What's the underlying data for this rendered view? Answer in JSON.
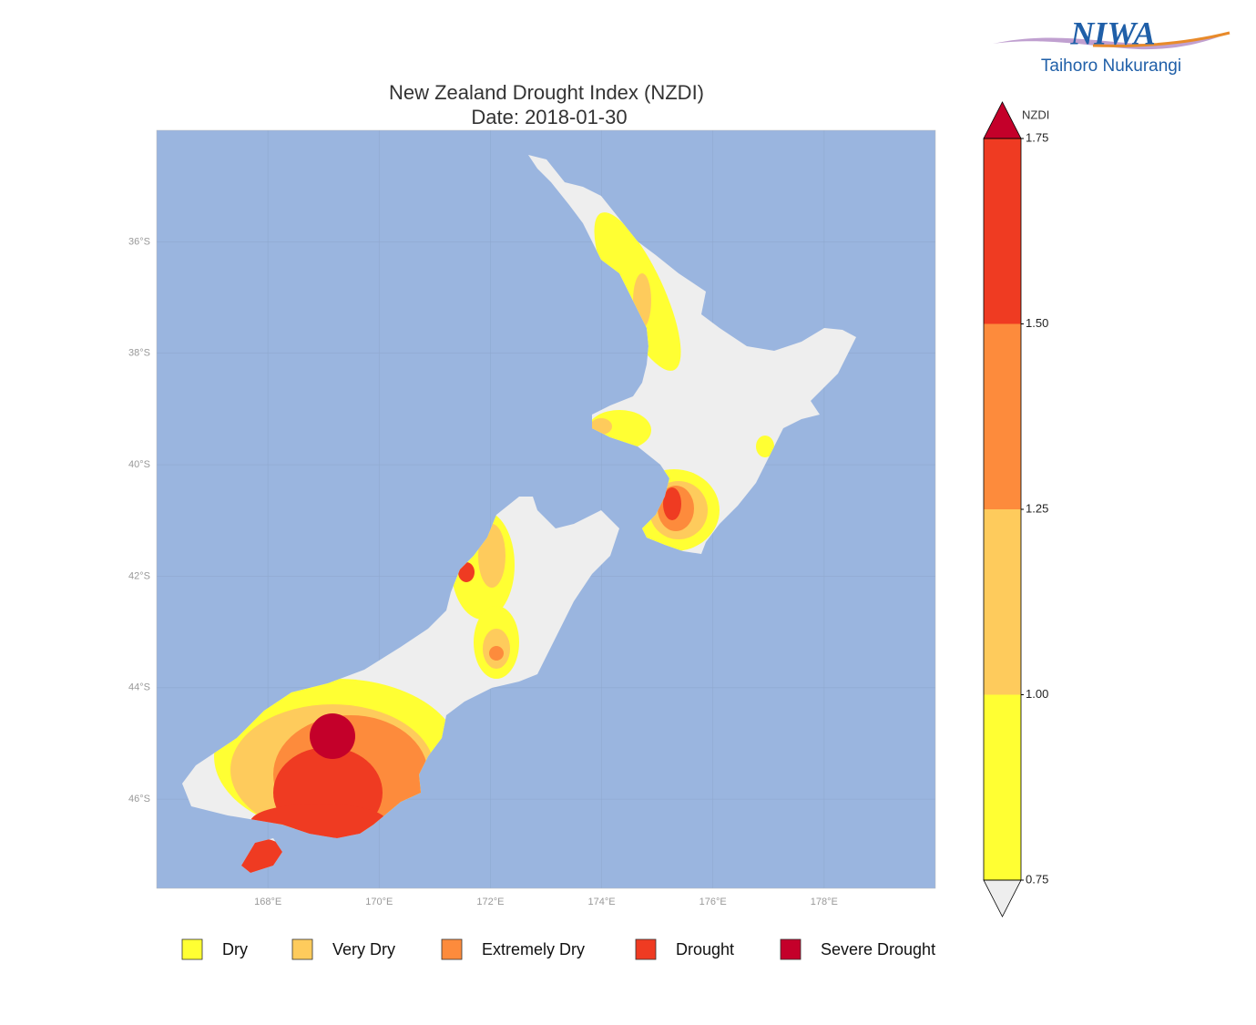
{
  "logo": {
    "name": "NIWA",
    "subtitle": "Taihoro Nukurangi"
  },
  "map": {
    "title": "New Zealand Drought Index (NZDI)",
    "subtitle": "Date: 2018-01-30",
    "xlim": [
      166,
      180
    ],
    "ylim": [
      -47.6,
      -34
    ],
    "xticks": [
      {
        "value": 168,
        "label": "168°E"
      },
      {
        "value": 170,
        "label": "170°E"
      },
      {
        "value": 172,
        "label": "172°E"
      },
      {
        "value": 174,
        "label": "174°E"
      },
      {
        "value": 176,
        "label": "176°E"
      },
      {
        "value": 178,
        "label": "178°E"
      }
    ],
    "yticks": [
      {
        "value": -36,
        "label": "36°S"
      },
      {
        "value": -38,
        "label": "38°S"
      },
      {
        "value": -40,
        "label": "40°S"
      },
      {
        "value": -42,
        "label": "42°S"
      },
      {
        "value": -44,
        "label": "44°S"
      },
      {
        "value": -46,
        "label": "46°S"
      }
    ],
    "grid": true
  },
  "colorbar": {
    "label": "NZDI",
    "lim": [
      0.75,
      1.75
    ],
    "ticks": [
      0.75,
      {
        "value": 1.0,
        "label": "1.00"
      },
      1.25,
      {
        "value": 1.5,
        "label": "1.50"
      },
      1.75
    ],
    "bounds": [
      0.75,
      1.0,
      1.25,
      1.5,
      1.75
    ],
    "colors": [
      "#ffff33",
      "#fecb5c",
      "#fd8b3c",
      "#ef3b22"
    ],
    "over_color": "#c4002a",
    "under_color": "#eeeeee"
  },
  "legend": [
    {
      "name": "Dry",
      "color": "#ffff33"
    },
    {
      "name": "Very Dry",
      "color": "#fecb5c"
    },
    {
      "name": "Extremely Dry",
      "color": "#fd8b3c"
    },
    {
      "name": "Drought",
      "color": "#ef3b22"
    },
    {
      "name": "Severe Drought",
      "color": "#c4002a"
    }
  ]
}
